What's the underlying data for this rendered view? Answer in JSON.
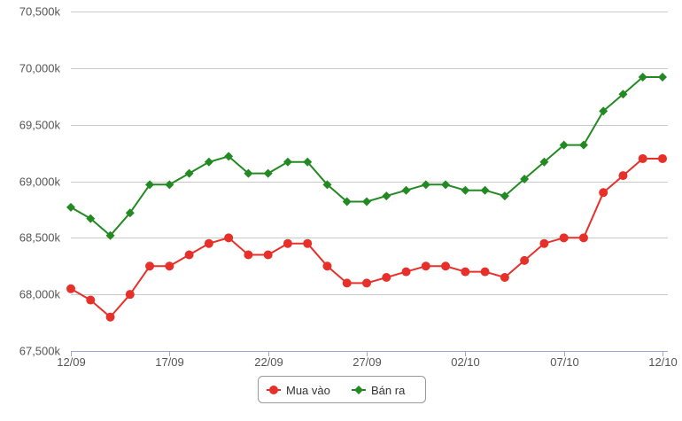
{
  "chart_data": {
    "type": "line",
    "x": [
      "12/09",
      "13/09",
      "14/09",
      "15/09",
      "16/09",
      "17/09",
      "18/09",
      "19/09",
      "20/09",
      "21/09",
      "22/09",
      "23/09",
      "24/09",
      "25/09",
      "26/09",
      "27/09",
      "28/09",
      "29/09",
      "30/09",
      "01/10",
      "02/10",
      "03/10",
      "04/10",
      "05/10",
      "06/10",
      "07/10",
      "08/10",
      "09/10",
      "10/10",
      "11/10",
      "12/10"
    ],
    "x_tick_labels": [
      "12/09",
      "17/09",
      "22/09",
      "27/09",
      "02/10",
      "07/10",
      "12/10"
    ],
    "x_tick_indices": [
      0,
      5,
      10,
      15,
      20,
      25,
      30
    ],
    "ylim": [
      67500,
      70500
    ],
    "y_ticks": [
      67500,
      68000,
      68500,
      69000,
      69500,
      70000,
      70500
    ],
    "y_tick_labels": [
      "67,500k",
      "68,000k",
      "68,500k",
      "69,000k",
      "69,500k",
      "70,000k",
      "70,500k"
    ],
    "grid": "horizontal",
    "legend_position": "bottom-center",
    "series": [
      {
        "name": "Mua vào",
        "color": "#e8302a",
        "marker": "circle",
        "values": [
          68050,
          67950,
          67800,
          68000,
          68250,
          68250,
          68350,
          68450,
          68500,
          68350,
          68350,
          68450,
          68450,
          68250,
          68100,
          68100,
          68150,
          68200,
          68250,
          68250,
          68200,
          68200,
          68150,
          68300,
          68450,
          68500,
          68500,
          68900,
          69050,
          69200,
          69200
        ]
      },
      {
        "name": "Bán ra",
        "color": "#238a23",
        "marker": "diamond",
        "values": [
          68770,
          68670,
          68520,
          68720,
          68970,
          68970,
          69070,
          69170,
          69220,
          69070,
          69070,
          69170,
          69170,
          68970,
          68820,
          68820,
          68870,
          68920,
          68970,
          68970,
          68920,
          68920,
          68870,
          69020,
          69170,
          69320,
          69320,
          69620,
          69770,
          69920,
          69920
        ]
      }
    ]
  }
}
